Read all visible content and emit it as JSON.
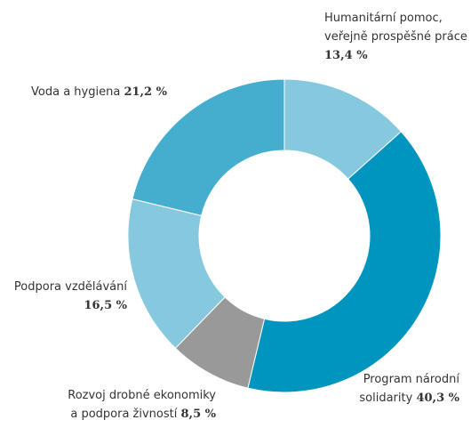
{
  "chart_data": {
    "type": "donut",
    "categories": [
      "Humanitární pomoc,\nveřejně prospěšné práce",
      "Program národní\nsolidarity",
      "Rozvoj drobné ekonomiky\na podpora živností",
      "Podpora vzdělávání",
      "Voda a hygiena"
    ],
    "values": [
      13.4,
      40.3,
      8.5,
      16.5,
      21.2
    ],
    "value_labels": [
      "13,4 %",
      "40,3 %",
      "8,5 %",
      "16,5 %",
      "21,2 %"
    ],
    "colors": [
      "#86c8de",
      "#0095bf",
      "#999999",
      "#86c8de",
      "#45aecf"
    ]
  }
}
